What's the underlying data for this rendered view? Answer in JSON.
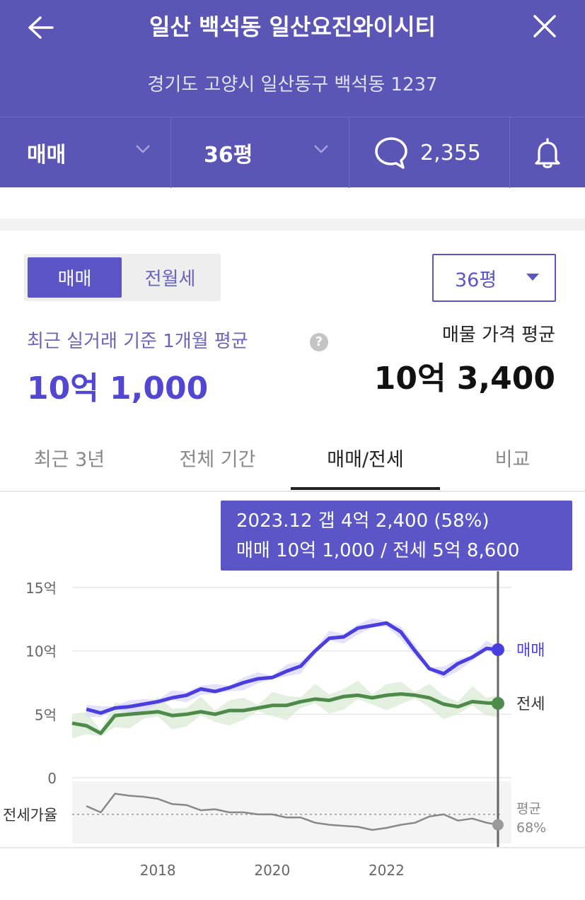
{
  "header": {
    "title": "일산 백석동 일산요진와이시티",
    "address": "경기도 고양시 일산동구 백석동 1237",
    "back_icon": "arrow-left-icon",
    "close_icon": "close-icon"
  },
  "filters": {
    "deal_type": "매매",
    "size": "36평",
    "comment_count": "2,355",
    "comment_icon": "speech-bubble-icon",
    "alarm_icon": "bell-icon"
  },
  "toggle": {
    "sale": "매매",
    "rent": "전월세",
    "active": "매매"
  },
  "size_select": {
    "value": "36평"
  },
  "summary": {
    "recent_label": "최근 실거래 기준 1개월 평균",
    "recent_value": "10억 1,000",
    "listing_label": "매물 가격 평균",
    "listing_value": "10억 3,400"
  },
  "tabs": [
    {
      "label": "최근 3년"
    },
    {
      "label": "전체 기간"
    },
    {
      "label": "매매/전세",
      "active": true
    },
    {
      "label": "비교"
    }
  ],
  "tooltip": {
    "line1": "2023.12  갭 4억 2,400 (58%)",
    "line2": "매매 10억 1,000 / 전세 5억 8,600"
  },
  "colors": {
    "brand": "#5b55b5",
    "sale": "#4a3ee0",
    "jeonse": "#4e8a4a",
    "ratio": "#888888"
  },
  "chart_data": {
    "type": "line",
    "y_ticks": [
      "15억",
      "10억",
      "5억",
      "0"
    ],
    "ylim": [
      0,
      15
    ],
    "x_ticks": [
      "2018",
      "2020",
      "2022"
    ],
    "xlim": [
      2016.5,
      2024.0
    ],
    "ratio_label": "전세가율",
    "ratio_avg_label": "평균",
    "ratio_avg_value": "68%",
    "series": [
      {
        "name": "매매",
        "x": [
          2016.75,
          2017.0,
          2017.25,
          2017.5,
          2017.75,
          2018.0,
          2018.25,
          2018.5,
          2018.75,
          2019.0,
          2019.25,
          2019.5,
          2019.75,
          2020.0,
          2020.25,
          2020.5,
          2020.75,
          2021.0,
          2021.25,
          2021.5,
          2021.75,
          2022.0,
          2022.25,
          2022.5,
          2022.75,
          2023.0,
          2023.25,
          2023.5,
          2023.75,
          2023.95
        ],
        "values": [
          5.4,
          5.1,
          5.5,
          5.6,
          5.8,
          6.0,
          6.3,
          6.5,
          7.0,
          6.8,
          7.1,
          7.5,
          7.8,
          7.9,
          8.4,
          8.8,
          10.0,
          11.0,
          11.1,
          11.8,
          12.0,
          12.2,
          11.5,
          10.0,
          8.6,
          8.2,
          9.0,
          9.5,
          10.2,
          10.1
        ]
      },
      {
        "name": "전세",
        "x": [
          2016.5,
          2016.75,
          2017.0,
          2017.25,
          2017.5,
          2017.75,
          2018.0,
          2018.25,
          2018.5,
          2018.75,
          2019.0,
          2019.25,
          2019.5,
          2019.75,
          2020.0,
          2020.25,
          2020.5,
          2020.75,
          2021.0,
          2021.25,
          2021.5,
          2021.75,
          2022.0,
          2022.25,
          2022.5,
          2022.75,
          2023.0,
          2023.25,
          2023.5,
          2023.75,
          2023.95
        ],
        "values": [
          4.3,
          4.1,
          3.5,
          4.9,
          5.0,
          5.1,
          5.2,
          4.9,
          5.0,
          5.2,
          5.0,
          5.3,
          5.3,
          5.5,
          5.7,
          5.7,
          6.0,
          6.2,
          6.1,
          6.4,
          6.5,
          6.3,
          6.5,
          6.6,
          6.5,
          6.3,
          5.8,
          5.6,
          6.0,
          5.9,
          5.86
        ]
      },
      {
        "name": "전세가율",
        "x": [
          2016.75,
          2017.0,
          2017.25,
          2017.5,
          2017.75,
          2018.0,
          2018.25,
          2018.5,
          2018.75,
          2019.0,
          2019.25,
          2019.5,
          2019.75,
          2020.0,
          2020.25,
          2020.5,
          2020.75,
          2021.0,
          2021.25,
          2021.5,
          2021.75,
          2022.0,
          2022.25,
          2022.5,
          2022.75,
          2023.0,
          2023.25,
          2023.5,
          2023.75,
          2023.95
        ],
        "values": [
          76,
          70,
          88,
          86,
          85,
          83,
          78,
          77,
          72,
          73,
          70,
          70,
          68,
          68,
          65,
          65,
          60,
          58,
          57,
          56,
          53,
          55,
          58,
          60,
          66,
          68,
          62,
          64,
          60,
          58
        ]
      }
    ]
  }
}
